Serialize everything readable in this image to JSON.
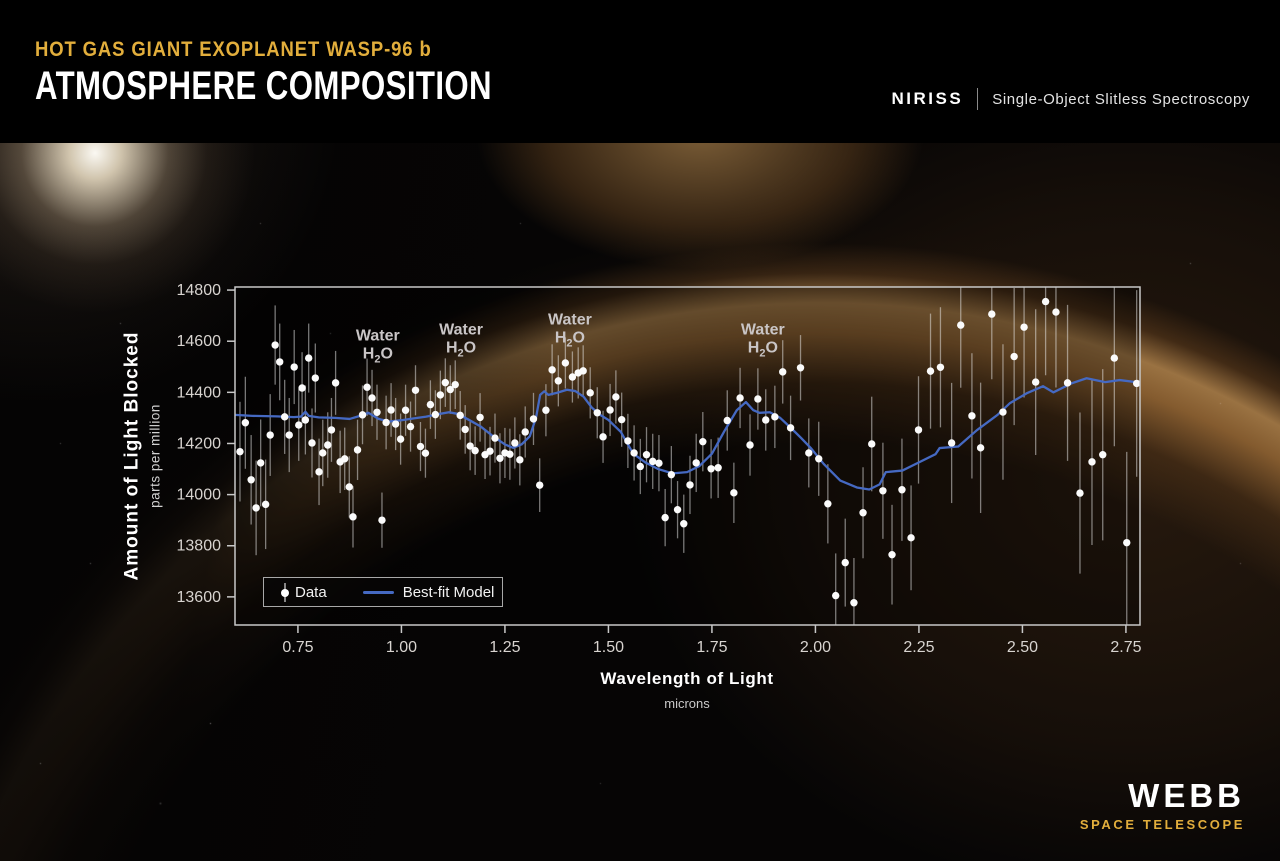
{
  "header": {
    "kicker": "HOT GAS GIANT EXOPLANET WASP-96 b",
    "title": "ATMOSPHERE COMPOSITION",
    "instrument": "NIRISS",
    "instrument_mode": "Single-Object Slitless Spectroscopy"
  },
  "logo": {
    "name": "WEBB",
    "subtitle": "SPACE TELESCOPE"
  },
  "legend": {
    "data_label": "Data",
    "model_label": "Best-fit Model"
  },
  "colors": {
    "accent_gold": "#e2ae3c",
    "model_blue": "#4569c2",
    "data_white": "#fbfbfb",
    "axis_gray": "#c8c8c8",
    "tick_text": "#d8d4d0",
    "annotation_gray": "#c9c5c6"
  },
  "chart_data": {
    "type": "scatter",
    "title": "Hot Gas Giant Exoplanet WASP-96 b Atmosphere Composition",
    "xlabel": "Wavelength of Light",
    "xlabel_sub": "microns",
    "ylabel": "Amount of Light Blocked",
    "ylabel_sub": "parts per million",
    "xlim": [
      0.598,
      2.784
    ],
    "ylim": [
      13490,
      14812
    ],
    "grid": false,
    "legend_position": "lower-left",
    "x_ticks": [
      {
        "v": 0.75,
        "label": "0.75"
      },
      {
        "v": 1.0,
        "label": "1.00"
      },
      {
        "v": 1.25,
        "label": "1.25"
      },
      {
        "v": 1.5,
        "label": "1.50"
      },
      {
        "v": 1.75,
        "label": "1.75"
      },
      {
        "v": 2.0,
        "label": "2.00"
      },
      {
        "v": 2.25,
        "label": "2.25"
      },
      {
        "v": 2.5,
        "label": "2.50"
      },
      {
        "v": 2.75,
        "label": "2.75"
      }
    ],
    "y_ticks": [
      {
        "v": 14800,
        "label": "14800"
      },
      {
        "v": 14600,
        "label": "14600"
      },
      {
        "v": 14400,
        "label": "14400"
      },
      {
        "v": 14200,
        "label": "14200"
      },
      {
        "v": 14000,
        "label": "14000"
      },
      {
        "v": 13800,
        "label": "13800"
      },
      {
        "v": 13600,
        "label": "13600"
      }
    ],
    "annotations": [
      {
        "x": 0.943,
        "y": 14622,
        "line1": "Water",
        "formula": [
          "H",
          "2",
          "O"
        ]
      },
      {
        "x": 1.144,
        "y": 14645,
        "line1": "Water",
        "formula": [
          "H",
          "2",
          "O"
        ]
      },
      {
        "x": 1.407,
        "y": 14684,
        "line1": "Water",
        "formula": [
          "H",
          "2",
          "O"
        ]
      },
      {
        "x": 1.873,
        "y": 14645,
        "line1": "Water",
        "formula": [
          "H",
          "2",
          "O"
        ]
      }
    ],
    "series": [
      {
        "name": "Data",
        "type": "scatter",
        "color": "#fbfbfb",
        "points": [
          [
            0.61,
            14168,
            195
          ],
          [
            0.623,
            14281,
            180
          ],
          [
            0.637,
            14058,
            175
          ],
          [
            0.649,
            13948,
            185
          ],
          [
            0.66,
            14124,
            170
          ],
          [
            0.672,
            13962,
            175
          ],
          [
            0.683,
            14233,
            160
          ],
          [
            0.695,
            14585,
            155
          ],
          [
            0.706,
            14519,
            150
          ],
          [
            0.718,
            14304,
            145
          ],
          [
            0.729,
            14233,
            145
          ],
          [
            0.741,
            14499,
            145
          ],
          [
            0.752,
            14272,
            140
          ],
          [
            0.76,
            14417,
            140
          ],
          [
            0.768,
            14292,
            135
          ],
          [
            0.776,
            14534,
            135
          ],
          [
            0.784,
            14202,
            135
          ],
          [
            0.792,
            14456,
            135
          ],
          [
            0.801,
            14089,
            130
          ],
          [
            0.81,
            14163,
            130
          ],
          [
            0.822,
            14194,
            128
          ],
          [
            0.831,
            14253,
            125
          ],
          [
            0.841,
            14437,
            125
          ],
          [
            0.852,
            14128,
            122
          ],
          [
            0.863,
            14140,
            122
          ],
          [
            0.874,
            14030,
            120
          ],
          [
            0.883,
            13913,
            120
          ],
          [
            0.894,
            14175,
            118
          ],
          [
            0.906,
            14312,
            115
          ],
          [
            0.917,
            14420,
            112
          ],
          [
            0.929,
            14378,
            110
          ],
          [
            0.941,
            14322,
            108
          ],
          [
            0.953,
            13900,
            108
          ],
          [
            0.963,
            14282,
            105
          ],
          [
            0.975,
            14331,
            105
          ],
          [
            0.986,
            14276,
            102
          ],
          [
            0.998,
            14217,
            100
          ],
          [
            1.01,
            14330,
            100
          ],
          [
            1.022,
            14266,
            98
          ],
          [
            1.034,
            14408,
            98
          ],
          [
            1.046,
            14188,
            96
          ],
          [
            1.058,
            14162,
            96
          ],
          [
            1.07,
            14352,
            95
          ],
          [
            1.082,
            14313,
            95
          ],
          [
            1.094,
            14390,
            95
          ],
          [
            1.106,
            14438,
            95
          ],
          [
            1.118,
            14411,
            95
          ],
          [
            1.13,
            14430,
            95
          ],
          [
            1.142,
            14310,
            95
          ],
          [
            1.154,
            14255,
            95
          ],
          [
            1.166,
            14190,
            95
          ],
          [
            1.178,
            14172,
            95
          ],
          [
            1.19,
            14302,
            95
          ],
          [
            1.202,
            14156,
            95
          ],
          [
            1.214,
            14170,
            95
          ],
          [
            1.226,
            14221,
            96
          ],
          [
            1.238,
            14142,
            98
          ],
          [
            1.25,
            14163,
            98
          ],
          [
            1.262,
            14158,
            100
          ],
          [
            1.274,
            14202,
            100
          ],
          [
            1.286,
            14136,
            100
          ],
          [
            1.299,
            14245,
            100
          ],
          [
            1.319,
            14296,
            102
          ],
          [
            1.334,
            14037,
            105
          ],
          [
            1.349,
            14330,
            102
          ],
          [
            1.364,
            14488,
            100
          ],
          [
            1.379,
            14445,
            100
          ],
          [
            1.396,
            14515,
            100
          ],
          [
            1.413,
            14460,
            100
          ],
          [
            1.427,
            14476,
            100
          ],
          [
            1.439,
            14484,
            100
          ],
          [
            1.456,
            14398,
            100
          ],
          [
            1.473,
            14320,
            100
          ],
          [
            1.487,
            14226,
            102
          ],
          [
            1.504,
            14331,
            102
          ],
          [
            1.518,
            14382,
            104
          ],
          [
            1.532,
            14293,
            106
          ],
          [
            1.547,
            14210,
            106
          ],
          [
            1.562,
            14163,
            108
          ],
          [
            1.577,
            14110,
            108
          ],
          [
            1.592,
            14156,
            108
          ],
          [
            1.607,
            14130,
            108
          ],
          [
            1.622,
            14123,
            110
          ],
          [
            1.637,
            13910,
            112
          ],
          [
            1.652,
            14078,
            112
          ],
          [
            1.667,
            13941,
            112
          ],
          [
            1.682,
            13886,
            114
          ],
          [
            1.697,
            14038,
            114
          ],
          [
            1.712,
            14124,
            114
          ],
          [
            1.728,
            14207,
            116
          ],
          [
            1.748,
            14101,
            116
          ],
          [
            1.765,
            14105,
            118
          ],
          [
            1.787,
            14290,
            118
          ],
          [
            1.803,
            14007,
            118
          ],
          [
            1.818,
            14378,
            118
          ],
          [
            1.842,
            14194,
            120
          ],
          [
            1.861,
            14374,
            120
          ],
          [
            1.88,
            14292,
            120
          ],
          [
            1.902,
            14304,
            122
          ],
          [
            1.921,
            14480,
            124
          ],
          [
            1.94,
            14261,
            126
          ],
          [
            1.964,
            14496,
            128
          ],
          [
            1.984,
            14163,
            135
          ],
          [
            2.008,
            14140,
            145
          ],
          [
            2.03,
            13964,
            155
          ],
          [
            2.049,
            13605,
            165
          ],
          [
            2.072,
            13734,
            172
          ],
          [
            2.093,
            13577,
            175
          ],
          [
            2.115,
            13929,
            178
          ],
          [
            2.136,
            14198,
            185
          ],
          [
            2.163,
            14015,
            188
          ],
          [
            2.185,
            13765,
            195
          ],
          [
            2.209,
            14019,
            200
          ],
          [
            2.231,
            13831,
            205
          ],
          [
            2.249,
            14253,
            210
          ],
          [
            2.278,
            14483,
            225
          ],
          [
            2.302,
            14498,
            235
          ],
          [
            2.329,
            14202,
            235
          ],
          [
            2.351,
            14663,
            245
          ],
          [
            2.378,
            14308,
            245
          ],
          [
            2.399,
            14183,
            255
          ],
          [
            2.426,
            14706,
            255
          ],
          [
            2.453,
            14323,
            265
          ],
          [
            2.48,
            14540,
            268
          ],
          [
            2.504,
            14655,
            275
          ],
          [
            2.532,
            14440,
            285
          ],
          [
            2.556,
            14755,
            288
          ],
          [
            2.581,
            14714,
            295
          ],
          [
            2.609,
            14437,
            305
          ],
          [
            2.639,
            14006,
            315
          ],
          [
            2.668,
            14128,
            325
          ],
          [
            2.694,
            14156,
            335
          ],
          [
            2.722,
            14534,
            345
          ],
          [
            2.752,
            13812,
            355
          ],
          [
            2.776,
            14435,
            365
          ]
        ]
      },
      {
        "name": "Best-fit Model",
        "type": "line",
        "color": "#4569c2",
        "points": [
          [
            0.598,
            14312
          ],
          [
            0.64,
            14308
          ],
          [
            0.7,
            14306
          ],
          [
            0.74,
            14303
          ],
          [
            0.757,
            14305
          ],
          [
            0.768,
            14324
          ],
          [
            0.776,
            14308
          ],
          [
            0.8,
            14302
          ],
          [
            0.84,
            14300
          ],
          [
            0.875,
            14296
          ],
          [
            0.9,
            14308
          ],
          [
            0.92,
            14320
          ],
          [
            0.945,
            14296
          ],
          [
            0.97,
            14286
          ],
          [
            1.0,
            14291
          ],
          [
            1.03,
            14298
          ],
          [
            1.06,
            14305
          ],
          [
            1.09,
            14315
          ],
          [
            1.115,
            14322
          ],
          [
            1.135,
            14316
          ],
          [
            1.16,
            14295
          ],
          [
            1.19,
            14268
          ],
          [
            1.22,
            14230
          ],
          [
            1.25,
            14196
          ],
          [
            1.27,
            14183
          ],
          [
            1.29,
            14196
          ],
          [
            1.31,
            14228
          ],
          [
            1.325,
            14300
          ],
          [
            1.335,
            14390
          ],
          [
            1.345,
            14404
          ],
          [
            1.355,
            14390
          ],
          [
            1.375,
            14398
          ],
          [
            1.4,
            14410
          ],
          [
            1.42,
            14405
          ],
          [
            1.44,
            14383
          ],
          [
            1.46,
            14340
          ],
          [
            1.48,
            14312
          ],
          [
            1.5,
            14292
          ],
          [
            1.53,
            14245
          ],
          [
            1.56,
            14160
          ],
          [
            1.59,
            14125
          ],
          [
            1.62,
            14100
          ],
          [
            1.655,
            14083
          ],
          [
            1.69,
            14088
          ],
          [
            1.72,
            14112
          ],
          [
            1.75,
            14160
          ],
          [
            1.78,
            14248
          ],
          [
            1.81,
            14330
          ],
          [
            1.832,
            14362
          ],
          [
            1.85,
            14330
          ],
          [
            1.865,
            14320
          ],
          [
            1.89,
            14322
          ],
          [
            1.915,
            14300
          ],
          [
            1.94,
            14262
          ],
          [
            1.965,
            14222
          ],
          [
            1.99,
            14180
          ],
          [
            2.02,
            14120
          ],
          [
            2.06,
            14055
          ],
          [
            2.1,
            14028
          ],
          [
            2.13,
            14020
          ],
          [
            2.155,
            14040
          ],
          [
            2.17,
            14088
          ],
          [
            2.21,
            14094
          ],
          [
            2.25,
            14126
          ],
          [
            2.29,
            14158
          ],
          [
            2.3,
            14182
          ],
          [
            2.345,
            14188
          ],
          [
            2.39,
            14252
          ],
          [
            2.44,
            14312
          ],
          [
            2.47,
            14358
          ],
          [
            2.51,
            14396
          ],
          [
            2.55,
            14424
          ],
          [
            2.575,
            14400
          ],
          [
            2.62,
            14436
          ],
          [
            2.655,
            14455
          ],
          [
            2.7,
            14440
          ],
          [
            2.735,
            14448
          ],
          [
            2.784,
            14438
          ]
        ]
      }
    ]
  }
}
